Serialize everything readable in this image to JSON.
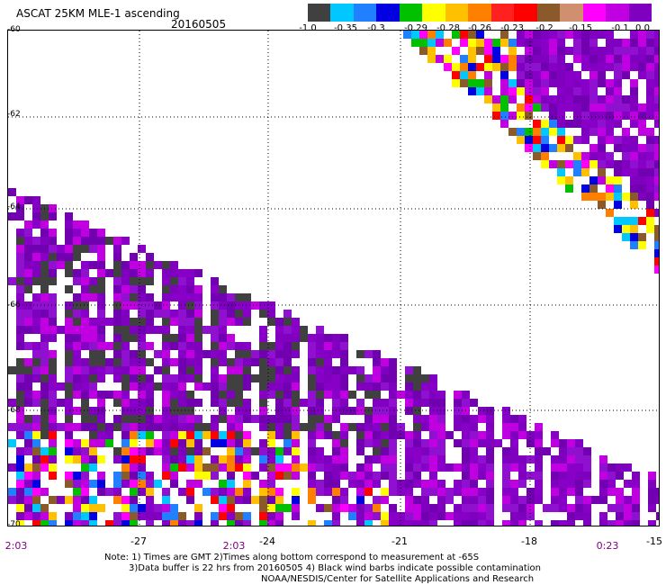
{
  "header": {
    "title": "ASCAT 25KM MLE-1 ascending",
    "date": "20160505"
  },
  "colorbar": {
    "colors": [
      "#404040",
      "#00c8ff",
      "#2080ff",
      "#0000e0",
      "#00c000",
      "#ffff00",
      "#ffc000",
      "#ff8000",
      "#ff2020",
      "#ff0000",
      "#8b5a2b",
      "#d09070",
      "#ff00ff",
      "#c000e0",
      "#8000c0"
    ],
    "ticks": [
      "-1.0",
      "-0.35",
      "-0.3",
      "-0.29",
      "-0.28",
      "-0.26",
      "-0.23",
      "-0.2",
      "-0.15",
      "-0.1",
      "0.0"
    ]
  },
  "axes": {
    "x_ticks": [
      "-27",
      "-24",
      "-21",
      "-18",
      "-15"
    ],
    "y_ticks": [
      "-60",
      "-62",
      "-64",
      "-66",
      "-68",
      "-70"
    ],
    "time_labels": [
      "2:03",
      "2:03",
      "0:23"
    ]
  },
  "notes": {
    "line1": "Note: 1) Times are GMT 2)Times along bottom correspond to measurement at -65S",
    "line2": "3)Data buffer is 22 hrs from 20160505 4) Black wind barbs indicate possible contamination",
    "line3": "NOAA/NESDIS/Center for Satellite Applications and Research"
  }
}
